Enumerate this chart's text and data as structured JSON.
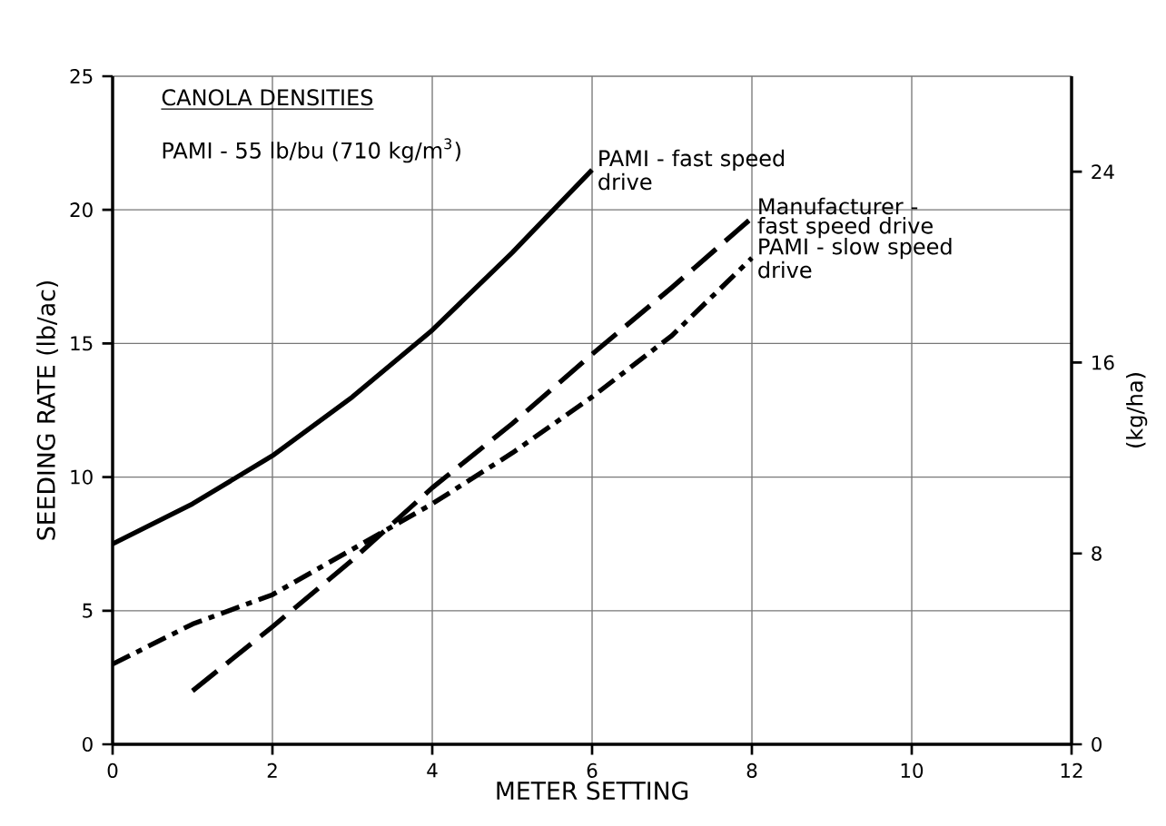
{
  "chart_data": {
    "type": "line",
    "title": "CANOLA DENSITIES",
    "subtitle": "PAMI - 55 lb/bu (710 kg/m$^{3}$)",
    "xlabel": "METER SETTING",
    "ylabel": "SEEDING RATE (lb/ac)",
    "y2label": "(kg/ha)",
    "xlim": [
      0,
      12
    ],
    "xticks": [
      0,
      2,
      4,
      6,
      8,
      10,
      12
    ],
    "ylim": [
      0,
      25
    ],
    "yticks": [
      0,
      5,
      10,
      15,
      20,
      25
    ],
    "y2lim": [
      0,
      28
    ],
    "y2ticks": [
      0,
      8,
      16,
      24
    ],
    "grid": true,
    "marker": "none",
    "series": [
      {
        "name": "PAMI - fast speed drive",
        "color": "#000000",
        "line_style": "solid",
        "x": [
          0,
          1,
          2,
          3,
          4,
          5,
          6
        ],
        "values": [
          7.5,
          9.0,
          10.8,
          13.0,
          15.5,
          18.4,
          21.5
        ]
      },
      {
        "name": "Manufacturer - fast speed drive",
        "color": "#000000",
        "line_style": "dashed",
        "x": [
          1,
          2,
          3,
          4,
          5,
          6,
          7,
          8
        ],
        "values": [
          2.0,
          4.4,
          6.9,
          9.6,
          12.0,
          14.6,
          17.1,
          19.7
        ]
      },
      {
        "name": "PAMI - slow speed drive",
        "color": "#000000",
        "line_style": "dashdot",
        "x": [
          0,
          1,
          2,
          3,
          4,
          5,
          6,
          7,
          8
        ],
        "values": [
          3.0,
          4.5,
          5.6,
          7.3,
          9.0,
          10.9,
          13.0,
          15.3,
          18.2
        ]
      }
    ]
  }
}
